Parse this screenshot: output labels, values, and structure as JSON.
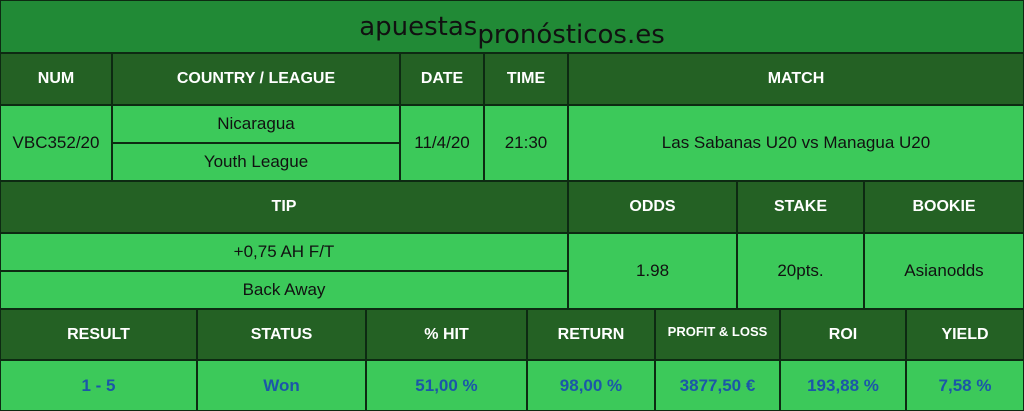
{
  "logo": {
    "part1": "apuestas",
    "part2": "pronósticos.es"
  },
  "headers1": [
    "NUM",
    "COUNTRY / LEAGUE",
    "DATE",
    "TIME",
    "MATCH"
  ],
  "row1": {
    "num": "VBC352/20",
    "country": "Nicaragua",
    "league": "Youth League",
    "date": "11/4/20",
    "time": "21:30",
    "match": "Las Sabanas U20 vs Managua U20"
  },
  "headers2": [
    "TIP",
    "ODDS",
    "STAKE",
    "BOOKIE"
  ],
  "row2": {
    "tip": "+0,75 AH F/T",
    "tip_detail": "Back Away",
    "odds": "1.98",
    "stake": "20pts.",
    "bookie": "Asianodds"
  },
  "headers3": [
    "RESULT",
    "STATUS",
    "% HIT",
    "RETURN",
    "PROFIT & LOSS",
    "ROI",
    "YIELD"
  ],
  "row3": [
    "1 - 5",
    "Won",
    "51,00 %",
    "98,00 %",
    "3877,50 €",
    "193,88 %",
    "7,58 %"
  ],
  "colors": {
    "title_bg": "#218a36",
    "header_bg": "#246124",
    "cell_bg": "#3cc95a",
    "value_text": "#1b57a8"
  }
}
